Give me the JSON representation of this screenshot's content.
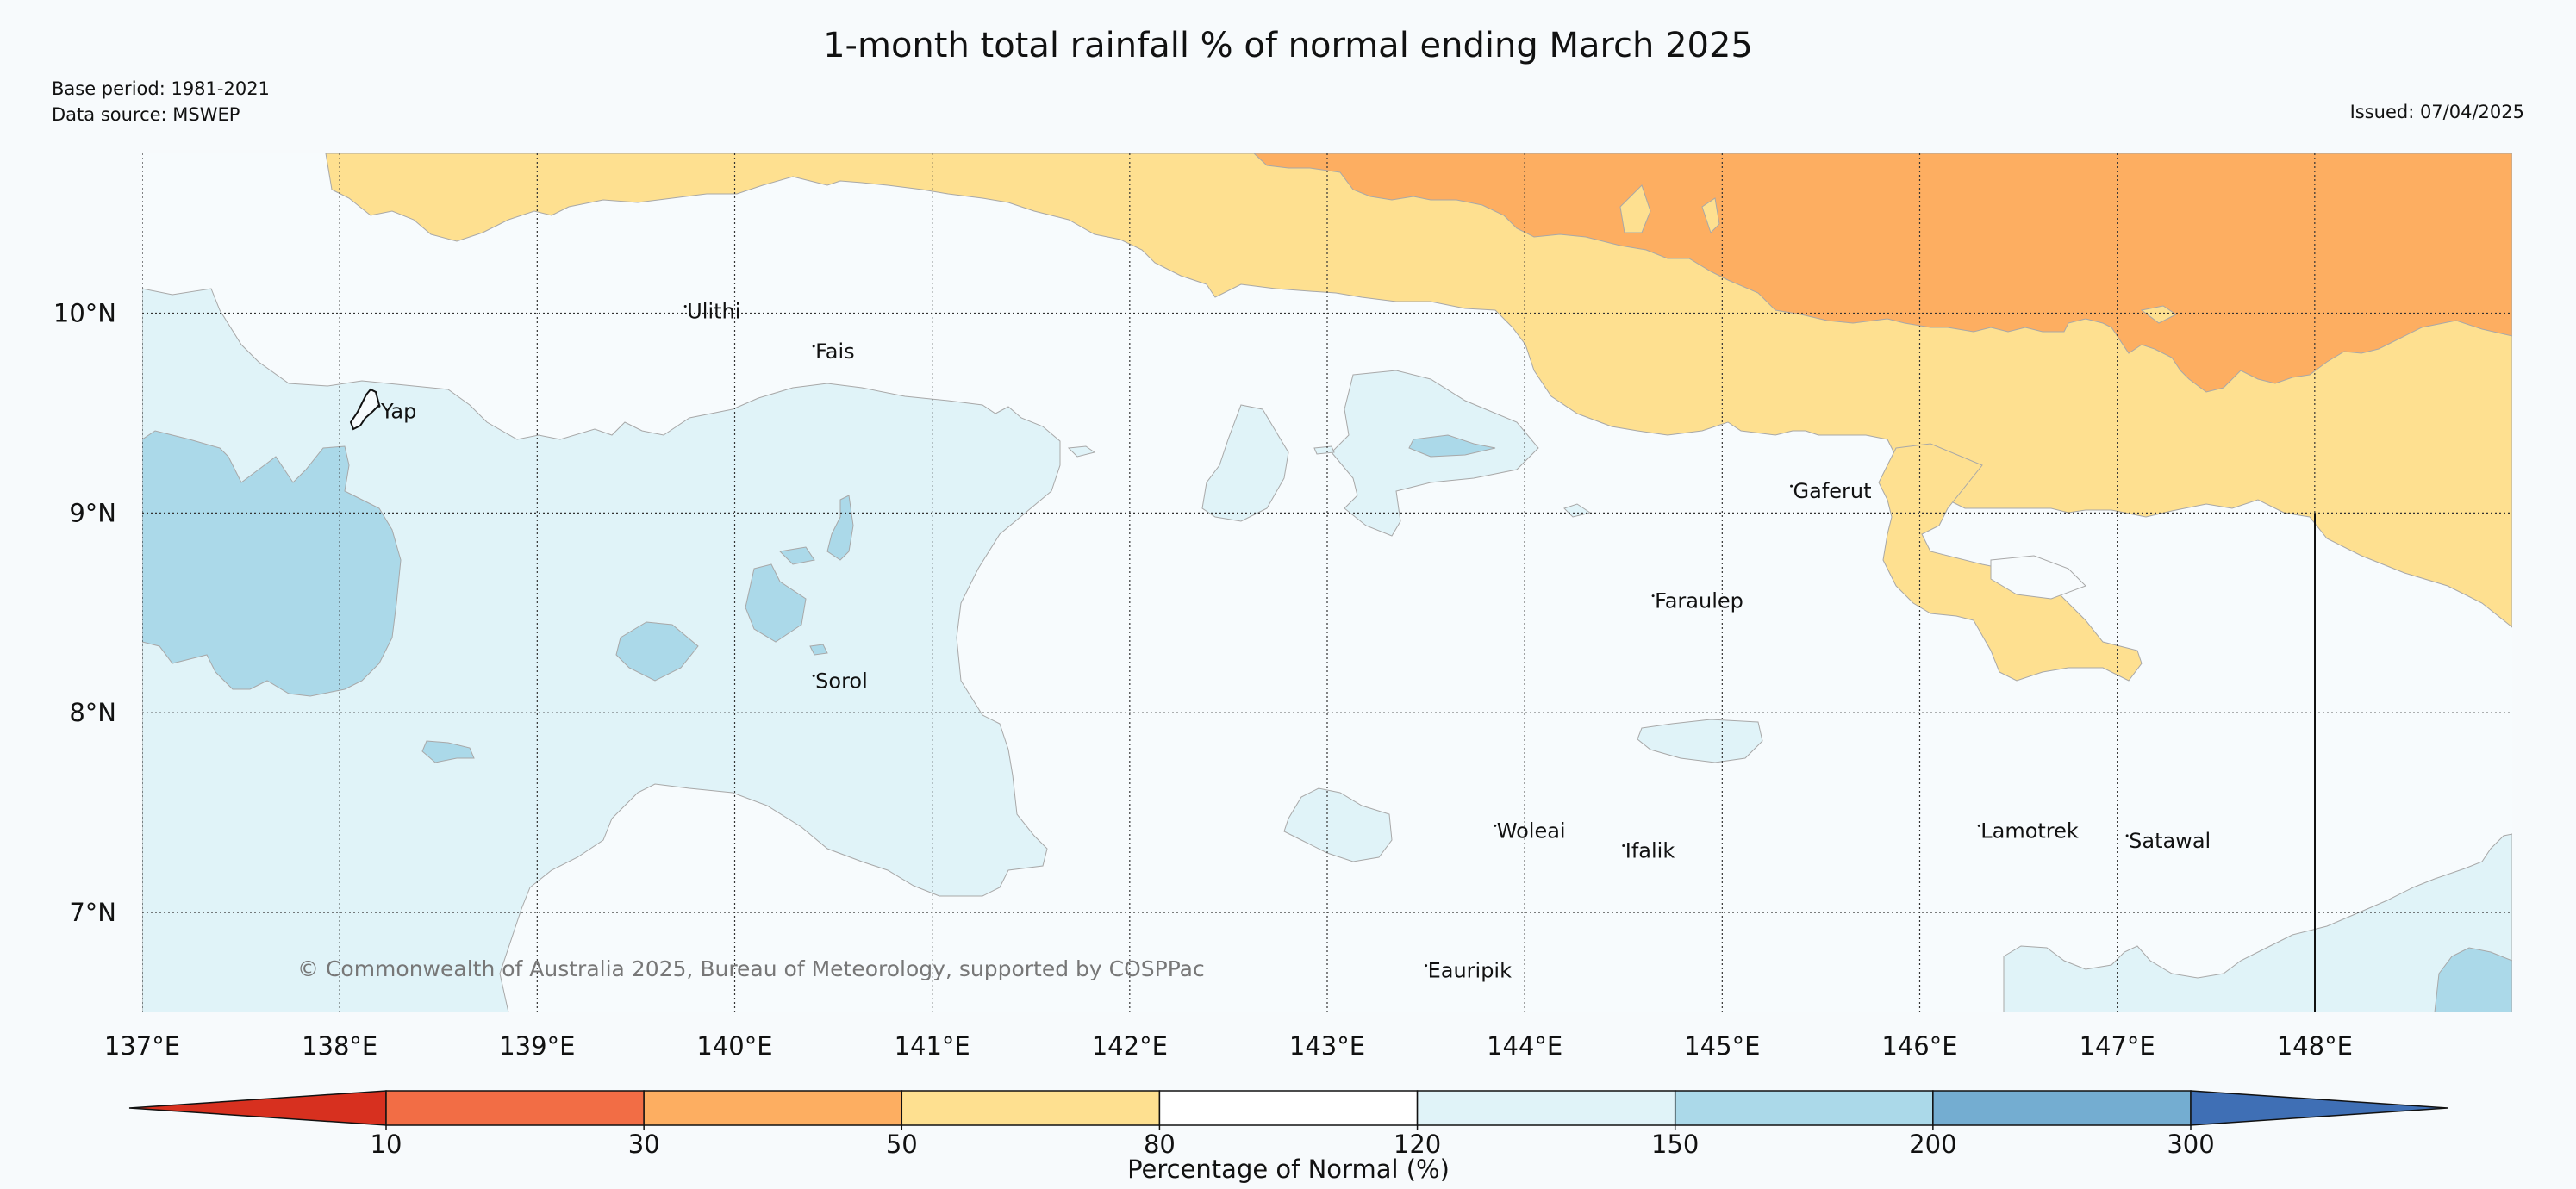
{
  "header": {
    "title": "1-month total rainfall % of normal ending March 2025",
    "base_period": "Base period: 1981-2021",
    "data_source": "Data source: MSWEP",
    "issued": "Issued: 07/04/2025"
  },
  "map": {
    "lon_range": [
      137.0,
      149.0
    ],
    "lat_range": [
      6.5,
      10.8
    ],
    "lat_ticks": [
      {
        "value": 10,
        "label": "10°N"
      },
      {
        "value": 9,
        "label": "9°N"
      },
      {
        "value": 8,
        "label": "8°N"
      },
      {
        "value": 7,
        "label": "7°N"
      }
    ],
    "lon_ticks": [
      {
        "value": 137,
        "label": "137°E"
      },
      {
        "value": 138,
        "label": "138°E"
      },
      {
        "value": 139,
        "label": "139°E"
      },
      {
        "value": 140,
        "label": "140°E"
      },
      {
        "value": 141,
        "label": "141°E"
      },
      {
        "value": 142,
        "label": "142°E"
      },
      {
        "value": 143,
        "label": "143°E"
      },
      {
        "value": 144,
        "label": "144°E"
      },
      {
        "value": 145,
        "label": "145°E"
      },
      {
        "value": 146,
        "label": "146°E"
      },
      {
        "value": 147,
        "label": "147°E"
      },
      {
        "value": 148,
        "label": "148°E"
      }
    ],
    "places": [
      {
        "name": "Ulithi",
        "lon": 139.75,
        "lat": 10.0
      },
      {
        "name": "Fais",
        "lon": 140.4,
        "lat": 9.8
      },
      {
        "name": "Yap",
        "lon": 138.2,
        "lat": 9.5
      },
      {
        "name": "Gaferut",
        "lon": 145.35,
        "lat": 9.1
      },
      {
        "name": "Faraulep",
        "lon": 144.65,
        "lat": 8.55
      },
      {
        "name": "Sorol",
        "lon": 140.4,
        "lat": 8.15
      },
      {
        "name": "Woleai",
        "lon": 143.85,
        "lat": 7.4
      },
      {
        "name": "Ifalik",
        "lon": 144.5,
        "lat": 7.3
      },
      {
        "name": "Lamotrek",
        "lon": 146.3,
        "lat": 7.4
      },
      {
        "name": "Satawal",
        "lon": 147.05,
        "lat": 7.35
      },
      {
        "name": "Eauripik",
        "lon": 143.5,
        "lat": 6.7
      }
    ],
    "copyright": "© Commonwealth of Australia 2025, Bureau of Meteorology, supported by COSPPac"
  },
  "colorbar": {
    "title": "Percentage of Normal (%)",
    "ticks": [
      "10",
      "30",
      "50",
      "80",
      "120",
      "150",
      "200",
      "300"
    ],
    "under_color": "#d7301f",
    "over_color": "#3f6fb5",
    "bins": [
      "#f26d45",
      "#fdae61",
      "#fee090",
      "#ffffff",
      "#e0f3f8",
      "#abd9e9",
      "#74add1"
    ]
  }
}
